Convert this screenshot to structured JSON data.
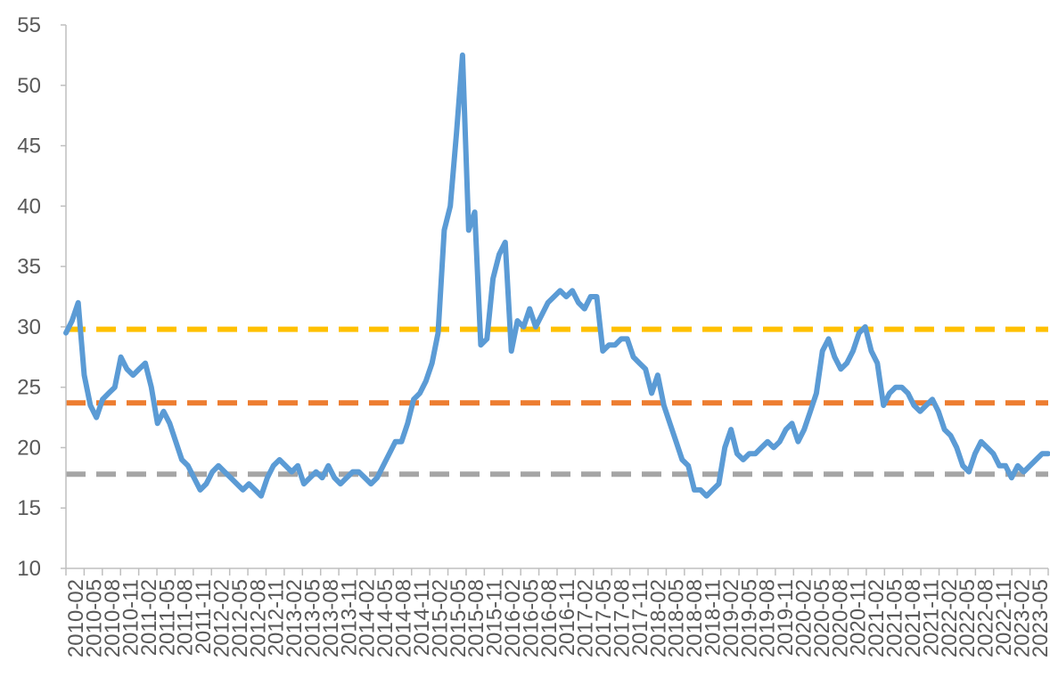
{
  "chart_data": {
    "type": "line",
    "title": "",
    "xlabel": "",
    "ylabel": "",
    "ylim": [
      10,
      55
    ],
    "yticks": [
      10,
      15,
      20,
      25,
      30,
      35,
      40,
      45,
      50,
      55
    ],
    "grid": false,
    "legend": "none",
    "x_tick_labels": [
      "2010-02",
      "2010-05",
      "2010-08",
      "2010-11",
      "2011-02",
      "2011-05",
      "2011-08",
      "2011-11",
      "2012-02",
      "2012-05",
      "2012-08",
      "2012-11",
      "2013-02",
      "2013-05",
      "2013-08",
      "2013-11",
      "2014-02",
      "2014-05",
      "2014-08",
      "2014-11",
      "2015-02",
      "2015-05",
      "2015-08",
      "2015-11",
      "2016-02",
      "2016-05",
      "2016-08",
      "2016-11",
      "2017-02",
      "2017-05",
      "2017-08",
      "2017-11",
      "2018-02",
      "2018-05",
      "2018-08",
      "2018-11",
      "2019-02",
      "2019-05",
      "2019-08",
      "2019-11",
      "2020-02",
      "2020-05",
      "2020-08",
      "2020-11",
      "2021-02",
      "2021-05",
      "2021-08",
      "2021-11",
      "2022-02",
      "2022-05",
      "2022-08",
      "2022-11",
      "2023-02",
      "2023-05"
    ],
    "series": [
      {
        "color": "#5b9bd5",
        "style": "solid",
        "x": [
          "2010-01",
          "2010-02",
          "2010-03",
          "2010-04",
          "2010-05",
          "2010-06",
          "2010-07",
          "2010-08",
          "2010-09",
          "2010-10",
          "2010-11",
          "2010-12",
          "2011-01",
          "2011-02",
          "2011-03",
          "2011-04",
          "2011-05",
          "2011-06",
          "2011-07",
          "2011-08",
          "2011-09",
          "2011-10",
          "2011-11",
          "2011-12",
          "2012-01",
          "2012-02",
          "2012-03",
          "2012-04",
          "2012-05",
          "2012-06",
          "2012-07",
          "2012-08",
          "2012-09",
          "2012-10",
          "2012-11",
          "2012-12",
          "2013-01",
          "2013-02",
          "2013-03",
          "2013-04",
          "2013-05",
          "2013-06",
          "2013-07",
          "2013-08",
          "2013-09",
          "2013-10",
          "2013-11",
          "2013-12",
          "2014-01",
          "2014-02",
          "2014-03",
          "2014-04",
          "2014-05",
          "2014-06",
          "2014-07",
          "2014-08",
          "2014-09",
          "2014-10",
          "2014-11",
          "2014-12",
          "2015-01",
          "2015-02",
          "2015-03",
          "2015-04",
          "2015-05",
          "2015-06",
          "2015-07",
          "2015-08",
          "2015-09",
          "2015-10",
          "2015-11",
          "2015-12",
          "2016-01",
          "2016-02",
          "2016-03",
          "2016-04",
          "2016-05",
          "2016-06",
          "2016-07",
          "2016-08",
          "2016-09",
          "2016-10",
          "2016-11",
          "2016-12",
          "2017-01",
          "2017-02",
          "2017-03",
          "2017-04",
          "2017-05",
          "2017-06",
          "2017-07",
          "2017-08",
          "2017-09",
          "2017-10",
          "2017-11",
          "2017-12",
          "2018-01",
          "2018-02",
          "2018-03",
          "2018-04",
          "2018-05",
          "2018-06",
          "2018-07",
          "2018-08",
          "2018-09",
          "2018-10",
          "2018-11",
          "2018-12",
          "2019-01",
          "2019-02",
          "2019-03",
          "2019-04",
          "2019-05",
          "2019-06",
          "2019-07",
          "2019-08",
          "2019-09",
          "2019-10",
          "2019-11",
          "2019-12",
          "2020-01",
          "2020-02",
          "2020-03",
          "2020-04",
          "2020-05",
          "2020-06",
          "2020-07",
          "2020-08",
          "2020-09",
          "2020-10",
          "2020-11",
          "2020-12",
          "2021-01",
          "2021-02",
          "2021-03",
          "2021-04",
          "2021-05",
          "2021-06",
          "2021-07",
          "2021-08",
          "2021-09",
          "2021-10",
          "2021-11",
          "2021-12",
          "2022-01",
          "2022-02",
          "2022-03",
          "2022-04",
          "2022-05",
          "2022-06",
          "2022-07",
          "2022-08",
          "2022-09",
          "2022-10",
          "2022-11",
          "2022-12",
          "2023-01",
          "2023-02",
          "2023-03",
          "2023-04",
          "2023-05",
          "2023-06"
        ],
        "values": [
          29.5,
          30.5,
          32.0,
          26.0,
          23.5,
          22.5,
          24.0,
          24.5,
          25.0,
          27.5,
          26.5,
          26.0,
          26.5,
          27.0,
          25.0,
          22.0,
          23.0,
          22.0,
          20.5,
          19.0,
          18.5,
          17.5,
          16.5,
          17.0,
          18.0,
          18.5,
          18.0,
          17.5,
          17.0,
          16.5,
          17.0,
          16.5,
          16.0,
          17.5,
          18.5,
          19.0,
          18.5,
          18.0,
          18.5,
          17.0,
          17.5,
          18.0,
          17.5,
          18.5,
          17.5,
          17.0,
          17.5,
          18.0,
          18.0,
          17.5,
          17.0,
          17.5,
          18.5,
          19.5,
          20.5,
          20.5,
          22.0,
          24.0,
          24.5,
          25.5,
          27.0,
          29.5,
          38.0,
          40.0,
          46.0,
          52.5,
          38.0,
          39.5,
          28.5,
          29.0,
          34.0,
          36.0,
          37.0,
          28.0,
          30.5,
          30.0,
          31.5,
          30.0,
          31.0,
          32.0,
          32.5,
          33.0,
          32.5,
          33.0,
          32.0,
          31.5,
          32.5,
          32.5,
          28.0,
          28.5,
          28.5,
          29.0,
          29.0,
          27.5,
          27.0,
          26.5,
          24.5,
          26.0,
          23.5,
          22.0,
          20.5,
          19.0,
          18.5,
          16.5,
          16.5,
          16.0,
          16.5,
          17.0,
          20.0,
          21.5,
          19.5,
          19.0,
          19.5,
          19.5,
          20.0,
          20.5,
          20.0,
          20.5,
          21.5,
          22.0,
          20.5,
          21.5,
          23.0,
          24.5,
          28.0,
          29.0,
          27.5,
          26.5,
          27.0,
          28.0,
          29.5,
          30.0,
          28.0,
          27.0,
          23.5,
          24.5,
          25.0,
          25.0,
          24.5,
          23.5,
          23.0,
          23.5,
          24.0,
          23.0,
          21.5,
          21.0,
          20.0,
          18.5,
          18.0,
          19.5,
          20.5,
          20.0,
          19.5,
          18.5,
          18.5,
          17.5,
          18.5,
          18.0,
          18.5,
          19.0,
          19.5,
          19.5
        ]
      },
      {
        "color": "#ffc000",
        "style": "dashed",
        "constant": 29.8
      },
      {
        "color": "#ed7d31",
        "style": "dashed",
        "constant": 23.7
      },
      {
        "color": "#a5a5a5",
        "style": "dashed",
        "constant": 17.8
      }
    ],
    "colors": {
      "axis": "#bfbfbf",
      "tick_text": "#595959"
    }
  }
}
